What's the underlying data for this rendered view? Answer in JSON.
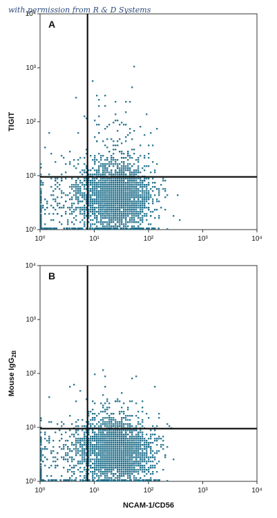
{
  "watermark": "with permission from R & D Systems",
  "colors": {
    "dot": "#1f6f8b",
    "gate": "#111111",
    "frame": "#333333"
  },
  "chart_data": [
    {
      "type": "scatter",
      "panel_label": "A",
      "xlabel": "",
      "ylabel": "TIGIT",
      "xscale": "log",
      "yscale": "log",
      "xlim": [
        1,
        10000
      ],
      "ylim": [
        1,
        10000
      ],
      "x_ticks": [
        "10⁰",
        "10¹",
        "10²",
        "10³",
        "10⁴"
      ],
      "y_ticks": [
        "10⁰",
        "10¹",
        "10²",
        "10³",
        "10⁴"
      ],
      "gate": {
        "x": 7.5,
        "y": 9.5
      },
      "population": {
        "center_x": 25,
        "center_y": 4,
        "spread_x_decades": 0.33,
        "spread_y_decades": 0.3,
        "tail_up_to_y": 60
      },
      "grid": false
    },
    {
      "type": "scatter",
      "panel_label": "B",
      "xlabel": "NCAM-1/CD56",
      "ylabel": "Mouse IgG",
      "ylabel_sub": "2B",
      "xscale": "log",
      "yscale": "log",
      "xlim": [
        1,
        10000
      ],
      "ylim": [
        1,
        10000
      ],
      "x_ticks": [
        "10⁰",
        "10¹",
        "10²",
        "10³",
        "10⁴"
      ],
      "y_ticks": [
        "10⁰",
        "10¹",
        "10²",
        "10³",
        "10⁴"
      ],
      "gate": {
        "x": 7.5,
        "y": 9.5
      },
      "population": {
        "center_x": 25,
        "center_y": 3.5,
        "spread_x_decades": 0.33,
        "spread_y_decades": 0.27,
        "tail_up_to_y": 25
      },
      "grid": false
    }
  ]
}
